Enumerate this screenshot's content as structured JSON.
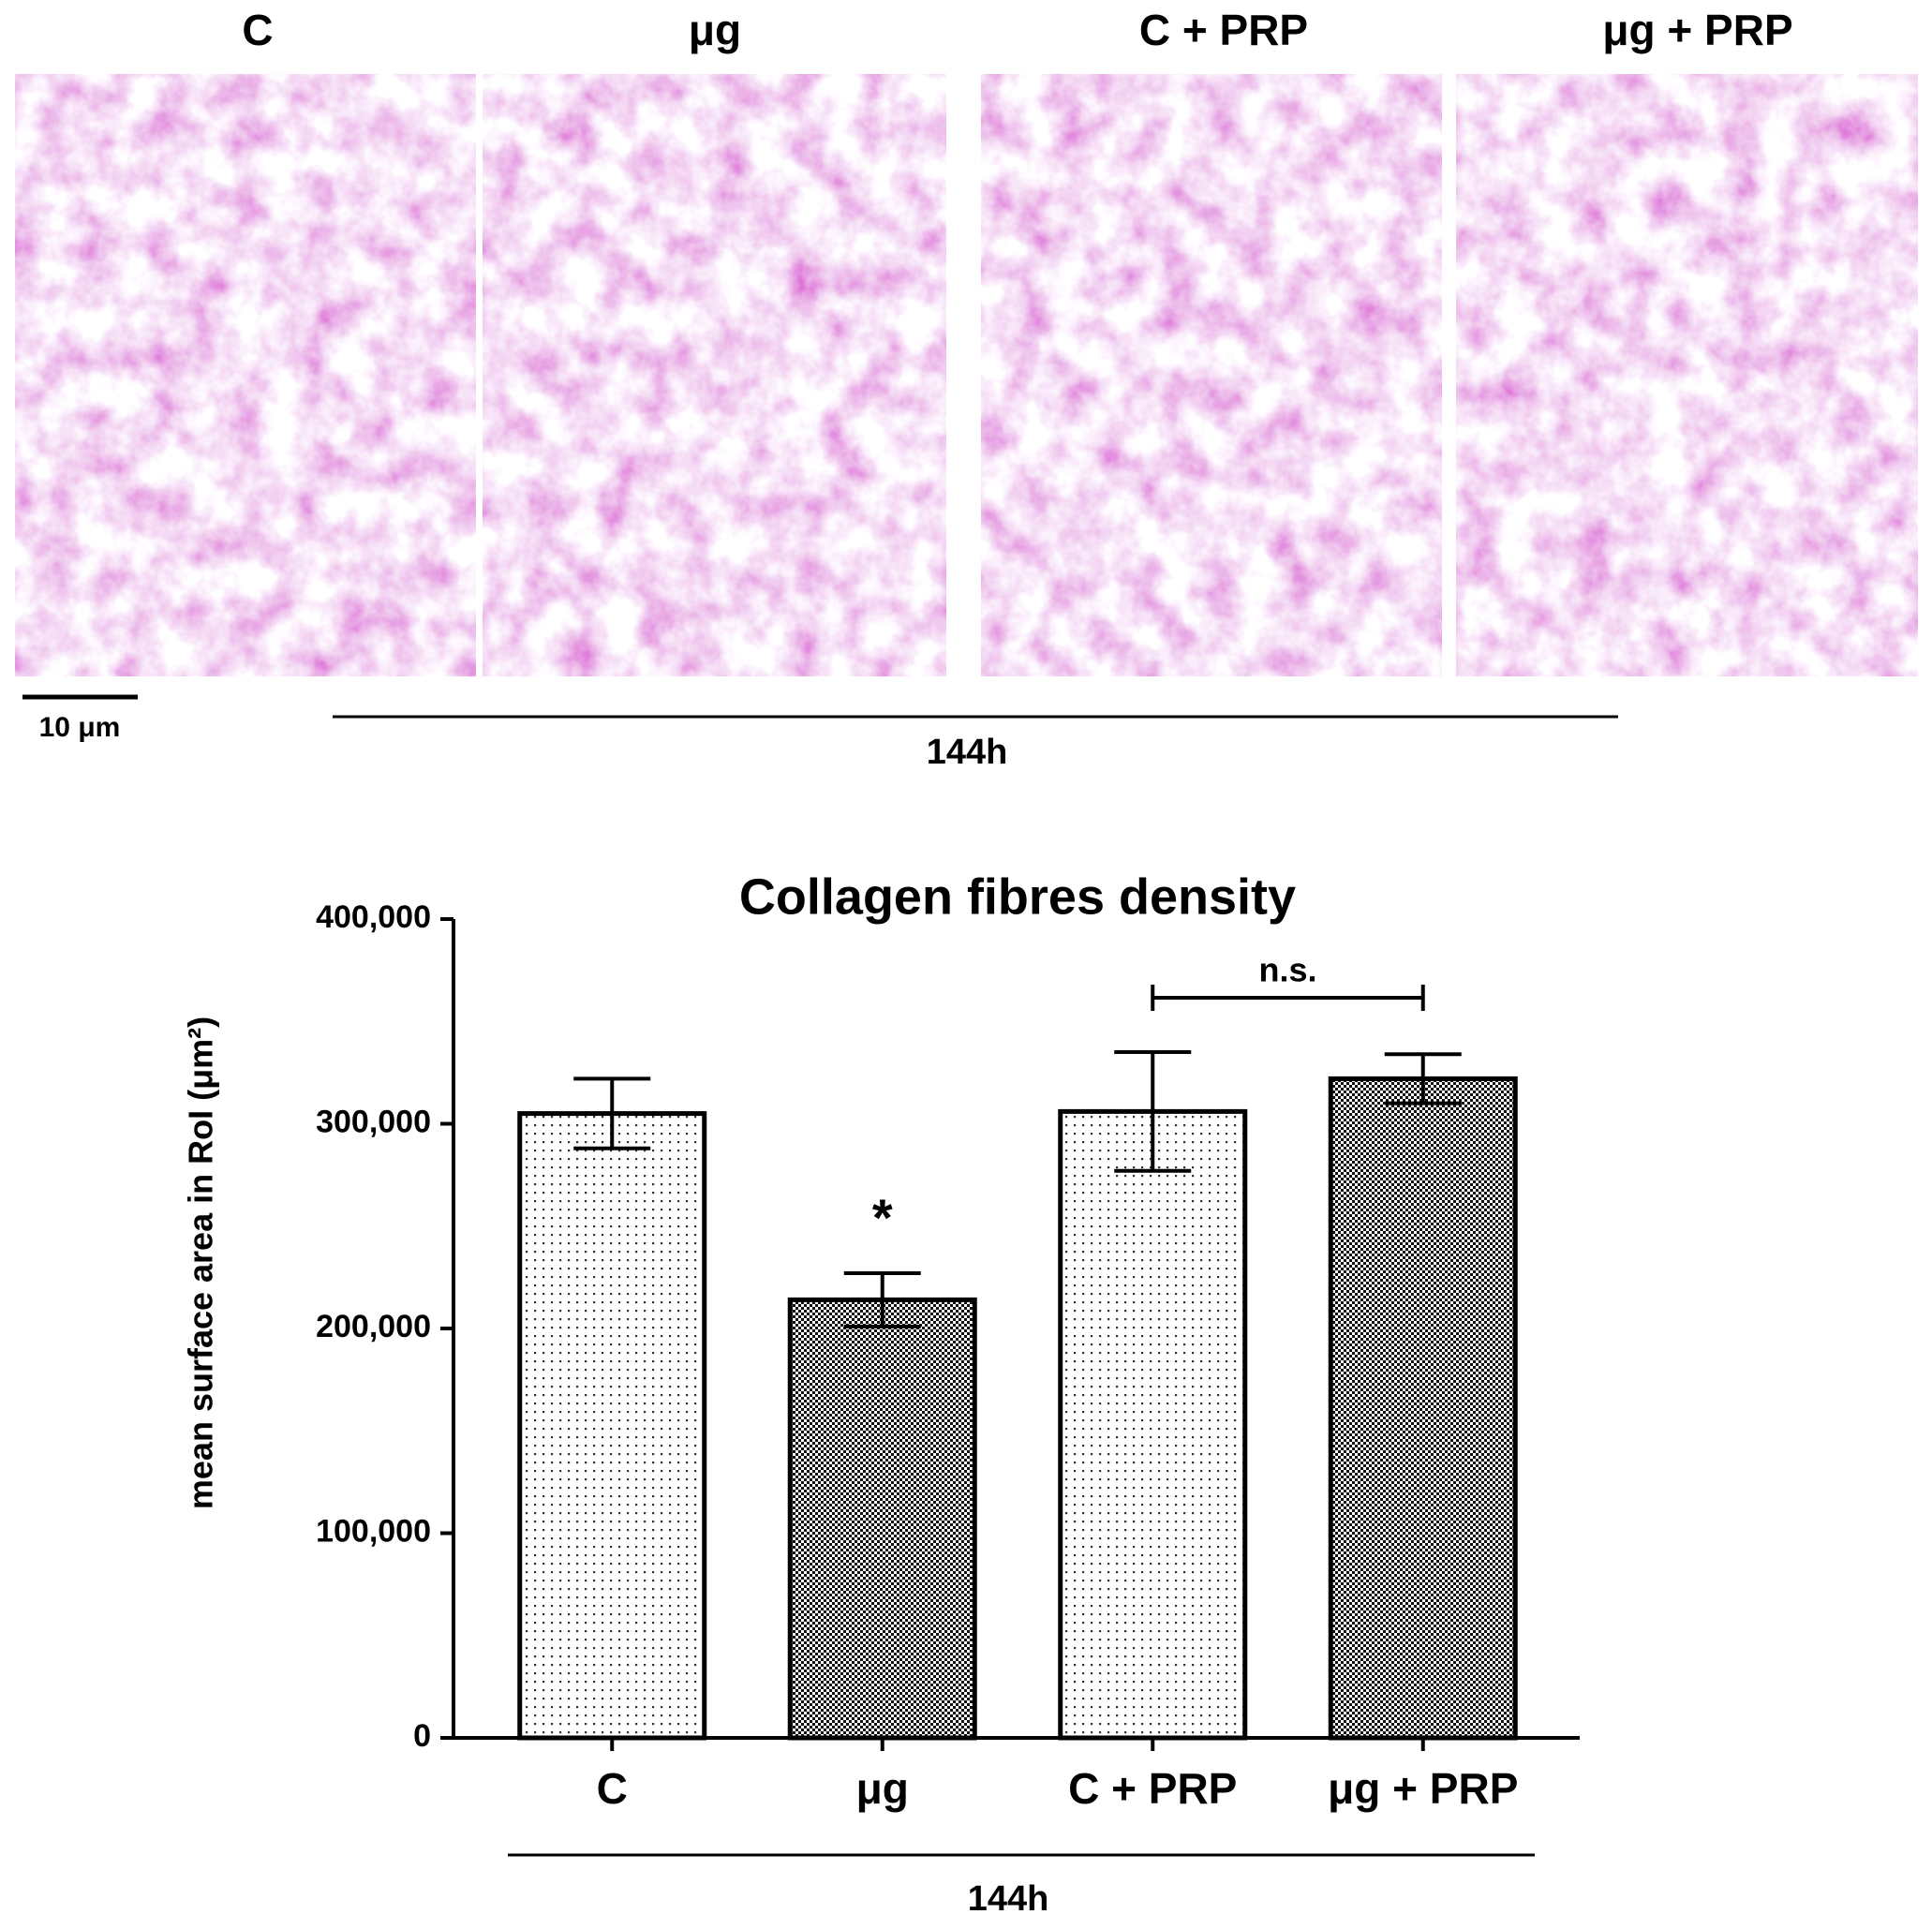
{
  "figure": {
    "panel_labels": [
      "C",
      "μg",
      "C + PRP",
      "μg + PRP"
    ],
    "scale_bar": "10 μm",
    "timepoint": "144h"
  },
  "chart_data": {
    "type": "bar",
    "title": "Collagen fibres density",
    "y_label": "mean surface area in RoI (μm²)",
    "categories": [
      "C",
      "μg",
      "C + PRP",
      "μg + PRP"
    ],
    "values": [
      305000,
      214000,
      306000,
      322000
    ],
    "errors": [
      17000,
      13000,
      29000,
      12000
    ],
    "fills": [
      "dotted",
      "checkered",
      "dotted",
      "checkered"
    ],
    "ylim": [
      0,
      400000
    ],
    "yticks": [
      0,
      {
        "value": 100000,
        "label": "100,000"
      },
      {
        "value": 200000,
        "label": "200,000"
      },
      {
        "value": 300000,
        "label": "300,000"
      },
      {
        "value": 400000,
        "label": "400,000"
      }
    ],
    "annotations": [
      {
        "text": "*",
        "category": 1
      }
    ],
    "significance": {
      "text": "n.s.",
      "from": 2,
      "to": 3
    },
    "x_group_label": "144h"
  }
}
